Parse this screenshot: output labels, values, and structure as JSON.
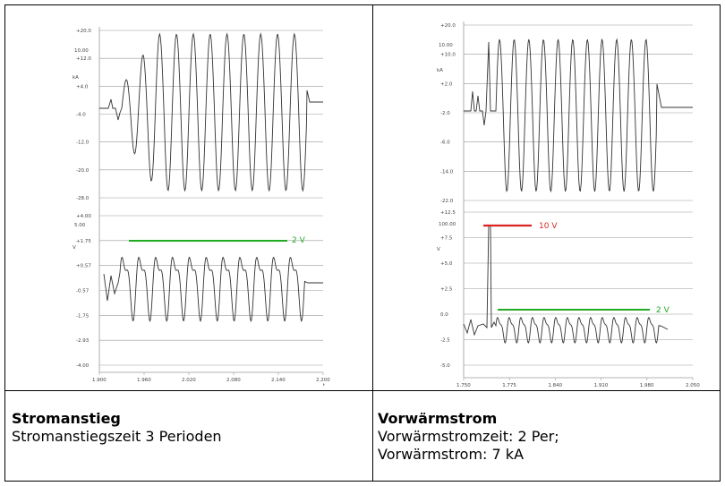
{
  "captions": {
    "left": {
      "title": "Stromanstieg",
      "lines": [
        "Stromanstiegszeit 3 Perioden"
      ]
    },
    "right": {
      "title": "Vorwärmstrom",
      "lines": [
        "Vorwärmstromzeit: 2 Per;",
        "Vorwärmstrom: 7 kA"
      ]
    }
  },
  "colors": {
    "trace": "#333333",
    "grid": "#9a9a9a",
    "green": "#22aa22",
    "red": "#dd2222"
  },
  "chart_data": [
    {
      "type": "line",
      "title": "Stromanstieg",
      "x_ticks": [
        "1.900",
        "1.960",
        "2.020",
        "2.080",
        "2.140",
        "2.200"
      ],
      "x_unit": "t",
      "subplots": [
        {
          "unit_label": "kA",
          "scale_label": "10.00",
          "y_ticks": [
            "+20.0",
            "+12.0",
            "+4.0",
            "-4.0",
            "-12.0",
            "-20.0",
            "-28.0"
          ],
          "series": [
            {
              "description": "welding current, rising amplitude over 3 periods",
              "peak_kA": 20
            }
          ]
        },
        {
          "unit_label": "V",
          "scale_label": "5.00",
          "y_ticks": [
            "+4.00",
            "+1.75",
            "+0.57",
            "-0.57",
            "-1.75",
            "-2.93",
            "-4.00"
          ],
          "series": [
            {
              "description": "voltage",
              "amplitude_V": 2
            }
          ],
          "annotations": [
            {
              "text": "2 V",
              "color": "green"
            }
          ]
        }
      ]
    },
    {
      "type": "line",
      "title": "Vorwärmstrom",
      "x_ticks": [
        "1.750",
        "1.775",
        "1.840",
        "1.910",
        "1.980",
        "2.050"
      ],
      "x_unit": "t",
      "subplots": [
        {
          "unit_label": "kA",
          "scale_label": "10.00",
          "y_ticks": [
            "+20.0",
            "+10.0",
            "+2.0",
            "-2.0",
            "-6.0",
            "-14.0",
            "-22.0"
          ],
          "series": [
            {
              "description": "preheat current 2 periods then welding current",
              "preheat_kA": 7
            }
          ]
        },
        {
          "unit_label": "V",
          "scale_label": "100.00",
          "y_ticks": [
            "+12.5",
            "+7.5",
            "+5.0",
            "+2.5",
            "0.0",
            "-2.5",
            "-5.0"
          ],
          "series": [
            {
              "description": "voltage with 10 V spike at preheat",
              "spike_V": 10,
              "amplitude_V": 2
            }
          ],
          "annotations": [
            {
              "text": "10 V",
              "color": "red"
            },
            {
              "text": "2 V",
              "color": "green"
            }
          ]
        }
      ]
    }
  ]
}
